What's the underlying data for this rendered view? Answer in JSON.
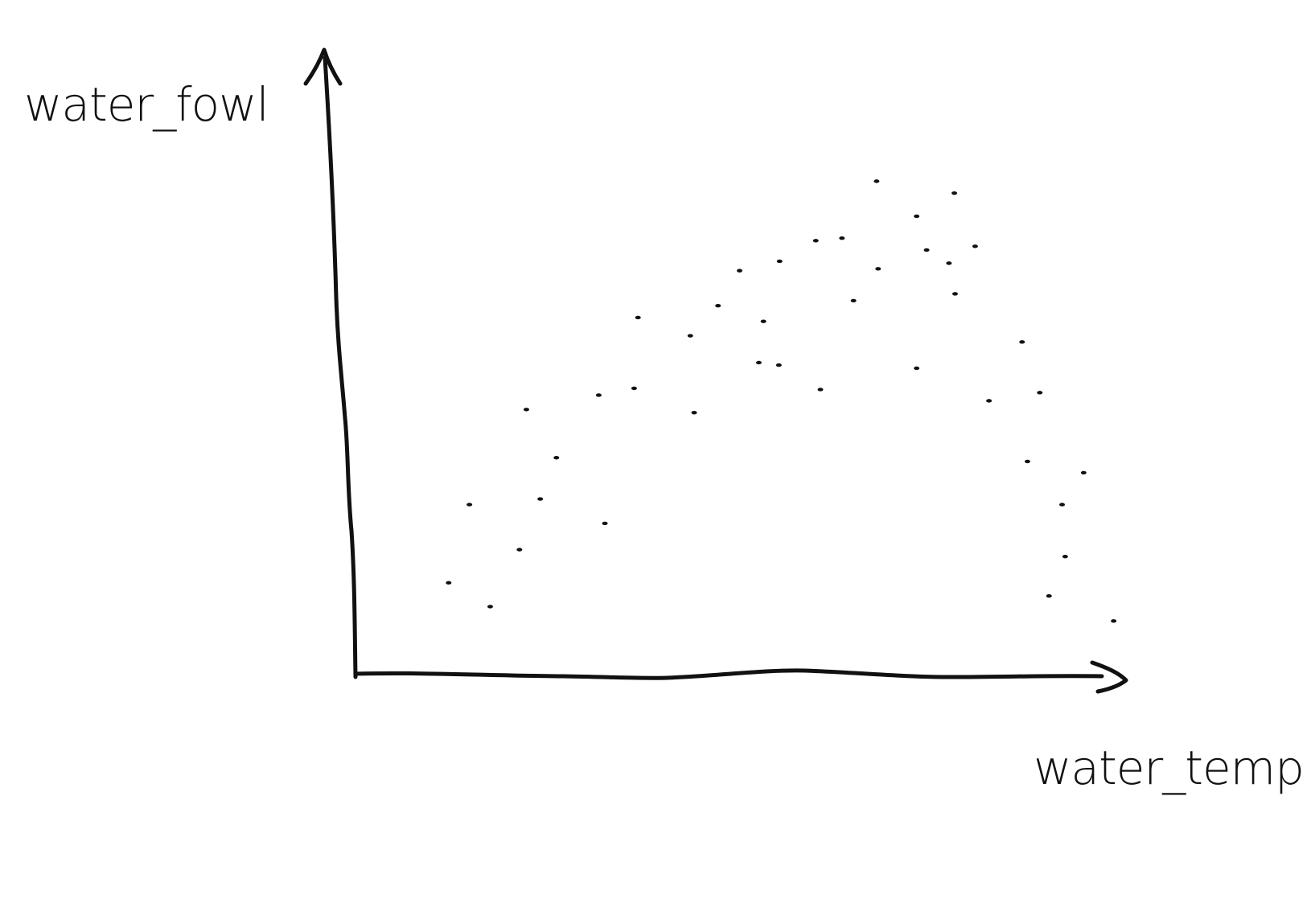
{
  "chart_data": {
    "type": "scatter",
    "y_label": "water_fowl",
    "x_label": "water_temp",
    "xlim": [
      0,
      100
    ],
    "ylim": [
      0,
      100
    ],
    "color": "#111111",
    "x": [
      12.1,
      17.5,
      14.8,
      21.3,
      24.0,
      26.1,
      22.2,
      31.6,
      36.2,
      32.4,
      36.7,
      43.5,
      44.0,
      47.1,
      49.9,
      55.1,
      53.0,
      52.4,
      55.0,
      60.4,
      59.8,
      63.2,
      64.7,
      67.7,
      67.9,
      72.9,
      72.9,
      74.2,
      77.8,
      77.1,
      77.9,
      80.5,
      86.6,
      88.9,
      82.3,
      87.3,
      94.6,
      91.8,
      92.2,
      90.1,
      98.5
    ],
    "values": [
      14.8,
      11.0,
      27.3,
      20.1,
      28.2,
      34.8,
      42.5,
      44.8,
      45.9,
      24.3,
      57.2,
      54.3,
      42.0,
      59.1,
      64.7,
      66.2,
      56.6,
      50.0,
      49.6,
      45.7,
      69.5,
      69.9,
      59.9,
      79.0,
      65.0,
      73.4,
      49.1,
      68.0,
      77.1,
      65.9,
      61.0,
      68.6,
      53.3,
      45.2,
      43.9,
      34.2,
      32.4,
      27.3,
      19.0,
      12.7,
      8.7
    ]
  }
}
